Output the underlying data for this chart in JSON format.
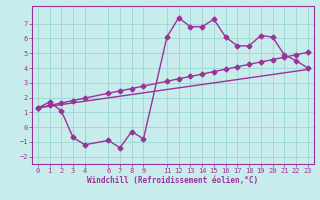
{
  "xlabel": "Windchill (Refroidissement éolien,°C)",
  "bg_color": "#c8ecec",
  "grid_color": "#a0d8d8",
  "line_color": "#993399",
  "xlim": [
    -0.5,
    23.5
  ],
  "ylim": [
    -2.5,
    8.2
  ],
  "xticks": [
    0,
    1,
    2,
    3,
    4,
    6,
    7,
    8,
    9,
    11,
    12,
    13,
    14,
    15,
    16,
    17,
    18,
    19,
    20,
    21,
    22,
    23
  ],
  "yticks": [
    -2,
    -1,
    0,
    1,
    2,
    3,
    4,
    5,
    6,
    7
  ],
  "line1_x": [
    0,
    1,
    2,
    3,
    4,
    6,
    7,
    8,
    9,
    11,
    12,
    13,
    14,
    15,
    16,
    17,
    18,
    19,
    20,
    21,
    22,
    23
  ],
  "line1_y": [
    1.3,
    1.7,
    1.1,
    -0.7,
    -1.2,
    -0.9,
    -1.4,
    -0.3,
    -0.8,
    6.1,
    7.4,
    6.8,
    6.8,
    7.3,
    6.1,
    5.5,
    5.5,
    6.2,
    6.1,
    4.9,
    4.5,
    4.0
  ],
  "line2_x": [
    0,
    1,
    2,
    3,
    4,
    6,
    7,
    8,
    9,
    11,
    12,
    13,
    14,
    15,
    16,
    17,
    18,
    19,
    20,
    21,
    22,
    23
  ],
  "line2_y": [
    1.3,
    1.47,
    1.63,
    1.8,
    1.96,
    2.29,
    2.45,
    2.61,
    2.78,
    3.1,
    3.27,
    3.43,
    3.59,
    3.76,
    3.92,
    4.08,
    4.25,
    4.41,
    4.57,
    4.73,
    4.9,
    5.06
  ],
  "line3_x": [
    0,
    23
  ],
  "line3_y": [
    1.3,
    3.9
  ],
  "marker": "D",
  "markersize": 2.5,
  "linewidth": 1.0,
  "tick_fontsize": 5.0,
  "xlabel_fontsize": 5.5
}
